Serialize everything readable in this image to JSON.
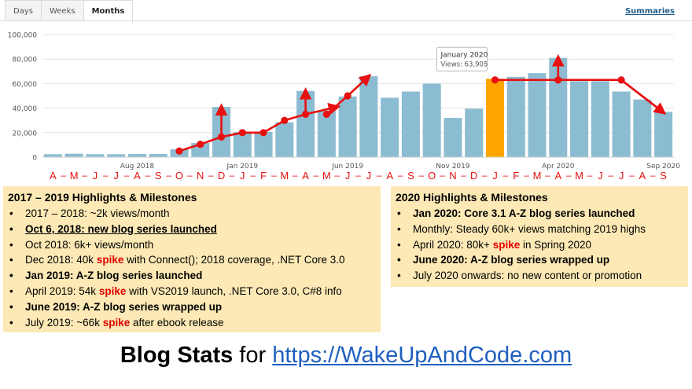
{
  "tabs": [
    "Days",
    "Weeks",
    "Months"
  ],
  "summaries_link": "Summaries",
  "chart_data": {
    "type": "bar",
    "ylim": [
      0,
      100000
    ],
    "yticks": [
      "0",
      "20,000",
      "40,000",
      "60,000",
      "80,000",
      "100,000"
    ],
    "period_labels": [
      "Aug 2018",
      "Jan 2019",
      "Jun 2019",
      "Nov 2019",
      "Apr 2020",
      "Sep 2020"
    ],
    "month_letters": [
      "A",
      "M",
      "J",
      "J",
      "A",
      "S",
      "O",
      "N",
      "D",
      "J",
      "F",
      "M",
      "A",
      "M",
      "J",
      "J",
      "A",
      "S",
      "O",
      "N",
      "D",
      "J",
      "F",
      "M",
      "A",
      "M",
      "J",
      "J",
      "A",
      "S"
    ],
    "values": [
      2400,
      2800,
      2400,
      2400,
      2600,
      2600,
      6500,
      11500,
      41000,
      20500,
      20500,
      28500,
      54000,
      38000,
      49500,
      66000,
      48500,
      53500,
      60000,
      32000,
      39500,
      63905,
      65500,
      68500,
      81000,
      62000,
      62000,
      53500,
      47000,
      37000
    ],
    "highlight_color": "#ffa500",
    "bar_color": "#8cbcd1",
    "tooltip": {
      "title": "January 2020",
      "text": "Views: 63,905"
    },
    "annotation_color": "#e81010"
  },
  "box2019": {
    "title": "2017 – 2019 Highlights & Milestones",
    "items": [
      {
        "pre": "2017 – 2018: ~2k views/month",
        "spike": "",
        "post": ""
      },
      {
        "pre": "Oct 6, 2018: new blog series launched",
        "spike": "",
        "post": ""
      },
      {
        "pre": "Oct 2018:  6k+ views/month",
        "spike": "",
        "post": ""
      },
      {
        "pre": "Dec 2018:  40k ",
        "spike": "spike",
        "post": " with Connect(); 2018 coverage, .NET Core 3.0"
      },
      {
        "pre": "Jan 2019: A-Z blog series launched",
        "spike": "",
        "post": ""
      },
      {
        "pre": "April 2019:  54k ",
        "spike": "spike",
        "post": " with VS2019 launch, .NET Core 3.0, C#8 info"
      },
      {
        "pre": "June 2019: A-Z blog series wrapped up",
        "spike": "",
        "post": ""
      },
      {
        "pre": "July 2019: ~66k ",
        "spike": "spike",
        "post": " after ebook release"
      }
    ]
  },
  "box2020": {
    "title": "2020 Highlights & Milestones",
    "items": [
      {
        "pre": "Jan 2020: Core 3.1 A-Z blog series launched",
        "spike": "",
        "post": ""
      },
      {
        "pre": "Monthly: Steady 60k+ views matching 2019 highs",
        "spike": "",
        "post": ""
      },
      {
        "pre": "April 2020: 80k+ ",
        "spike": "spike",
        "post": " in Spring 2020"
      },
      {
        "pre": "June 2020: A-Z blog series wrapped up",
        "spike": "",
        "post": ""
      },
      {
        "pre": "July 2020 onwards: no new content or promotion",
        "spike": "",
        "post": ""
      }
    ]
  },
  "footer": {
    "bold": "Blog Stats",
    "mid": " for ",
    "link": "https://WakeUpAndCode.com"
  }
}
